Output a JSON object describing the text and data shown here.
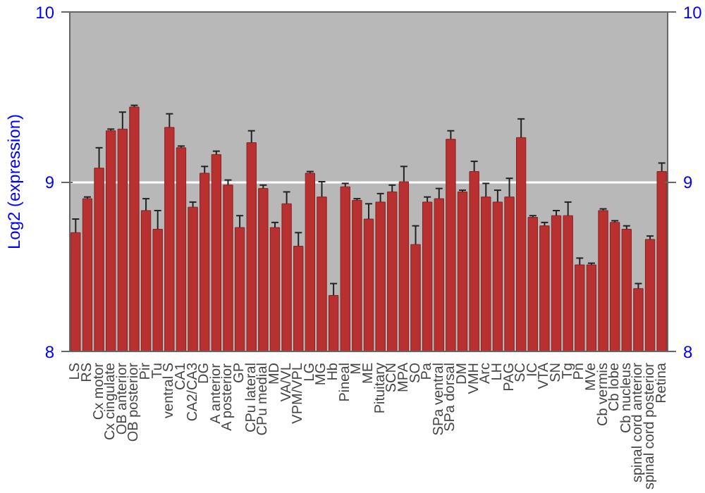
{
  "chart_data": {
    "type": "bar",
    "ylabel": "Log2 (expression)",
    "categories": [
      "LS",
      "RS",
      "Cx motor",
      "Cx cingulate",
      "OB anterior",
      "OB posterior",
      "Pir",
      "Tu",
      "ventral S",
      "CA1",
      "CA2/CA3",
      "DG",
      "A anterior",
      "A posterior",
      "GP",
      "CPu lateral",
      "CPu medial",
      "MD",
      "VA/VL",
      "VPM/VPL",
      "LG",
      "MG",
      "Hb",
      "Pineal",
      "M",
      "ME",
      "Pituitary",
      "SCN",
      "MPA",
      "SO",
      "Pa",
      "SPa ventral",
      "SPa dorsal",
      "DM",
      "VMH",
      "Arc",
      "LH",
      "PAG",
      "SC",
      "IC",
      "VTA",
      "SN",
      "Tg",
      "Pn",
      "MVe",
      "Cb vermis",
      "Cb lobe",
      "Cb nucleus",
      "spinal cord anterior",
      "spinal cord posterior",
      "Retina"
    ],
    "values": [
      8.7,
      8.9,
      9.08,
      9.3,
      9.31,
      9.44,
      8.83,
      8.72,
      9.32,
      9.2,
      8.85,
      9.05,
      9.16,
      8.98,
      8.73,
      9.23,
      8.96,
      8.73,
      8.87,
      8.62,
      9.05,
      8.91,
      8.33,
      8.97,
      8.89,
      8.78,
      8.88,
      8.94,
      9.0,
      8.63,
      8.88,
      8.9,
      9.25,
      8.94,
      9.06,
      8.91,
      8.88,
      8.91,
      9.26,
      8.79,
      8.74,
      8.8,
      8.8,
      8.51,
      8.51,
      8.83,
      8.76,
      8.72,
      8.37,
      8.66,
      9.06
    ],
    "errors": [
      0.08,
      0.01,
      0.12,
      0.01,
      0.1,
      0.01,
      0.07,
      0.11,
      0.08,
      0.01,
      0.03,
      0.04,
      0.02,
      0.03,
      0.07,
      0.07,
      0.02,
      0.03,
      0.07,
      0.08,
      0.01,
      0.09,
      0.07,
      0.02,
      0.01,
      0.09,
      0.05,
      0.04,
      0.09,
      0.11,
      0.03,
      0.06,
      0.05,
      0.01,
      0.06,
      0.08,
      0.07,
      0.11,
      0.11,
      0.01,
      0.02,
      0.03,
      0.08,
      0.04,
      0.01,
      0.01,
      0.01,
      0.02,
      0.03,
      0.02,
      0.05
    ],
    "color": "#b83030",
    "ylim": [
      8,
      10
    ],
    "yticks": [
      8,
      9,
      10
    ],
    "y2lim": [
      8,
      10
    ],
    "y2ticks": [
      8,
      9,
      10
    ],
    "grid": "y"
  }
}
